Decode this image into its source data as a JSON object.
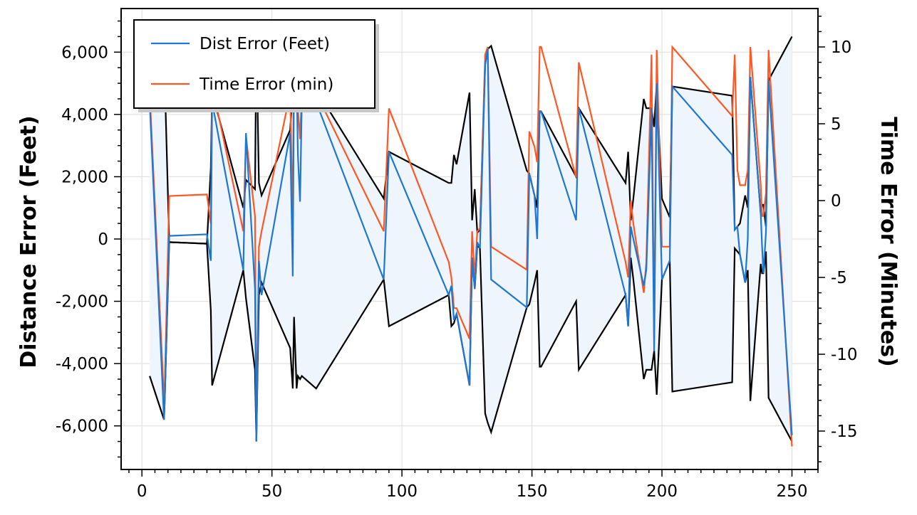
{
  "chart_data": {
    "type": "line",
    "title": "",
    "xlabel": "",
    "ylabel": "Distance Error (Feet)",
    "y2label": "Time Error (Minutes)",
    "xlim": [
      -8,
      260
    ],
    "ylim": [
      -7400,
      7400
    ],
    "y2lim": [
      -17.5,
      12.5
    ],
    "x_ticks": [
      0,
      50,
      100,
      150,
      200,
      250
    ],
    "y_ticks": [
      -6000,
      -4000,
      -2000,
      0,
      2000,
      4000,
      6000
    ],
    "y_tick_labels": [
      "-6,000",
      "-4,000",
      "-2,000",
      "0",
      "2,000",
      "4,000",
      "6,000"
    ],
    "y2_ticks": [
      -15,
      -10,
      -5,
      0,
      5,
      10
    ],
    "grid": true,
    "legend_position": "top-left",
    "colors": {
      "dist": "#1f77d0",
      "time": "#ff5722",
      "envelope": "#000000",
      "envelope_fill": "#eef5fc"
    },
    "series": [
      {
        "name": "Dist Error (Feet)",
        "axis": "left",
        "x": [
          3,
          8.5,
          8.8,
          10.5,
          25,
          26.5,
          27,
          39,
          40,
          43.5,
          44,
          45,
          46,
          57,
          58,
          58.5,
          59.5,
          60,
          60.8,
          61.5,
          67,
          93,
          95,
          118,
          119,
          120,
          121,
          126,
          127,
          128,
          129,
          130,
          132,
          133,
          134.3,
          148,
          149,
          151,
          152,
          153,
          153.5,
          167,
          168,
          186,
          187,
          188,
          189,
          193,
          194,
          196,
          197,
          198,
          200,
          203,
          204,
          227,
          228,
          229,
          230,
          232,
          233,
          234,
          238,
          238.5,
          239,
          240,
          241,
          250
        ],
        "values": [
          4400,
          -5800,
          -5100,
          100,
          150,
          -700,
          4400,
          -1000,
          3400,
          -1600,
          -6500,
          -700,
          -1800,
          3400,
          -1200,
          5800,
          5200,
          2700,
          1200,
          4400,
          4400,
          -1300,
          2800,
          -1800,
          -1500,
          -2600,
          -2400,
          -4700,
          -600,
          -1600,
          -100,
          -300,
          5600,
          6100,
          -1300,
          -2200,
          2100,
          1400,
          0,
          4100,
          4100,
          600,
          4200,
          -1800,
          -2800,
          400,
          0,
          -1500,
          -1000,
          4200,
          -3600,
          5000,
          -1300,
          -700,
          4900,
          2700,
          300,
          400,
          -500,
          -1400,
          0,
          5200,
          800,
          -200,
          -1100,
          200,
          5100,
          -6300
        ]
      },
      {
        "name": "Time Error (min)",
        "axis": "right",
        "x": [
          3,
          8.5,
          8.8,
          10.5,
          25,
          26.5,
          27,
          39,
          40,
          43.5,
          44,
          45,
          46,
          57,
          58,
          58.5,
          59.5,
          60,
          60.8,
          61.5,
          67,
          93,
          95,
          118,
          119,
          120,
          121,
          126,
          127,
          128,
          129,
          130,
          132,
          133,
          134.3,
          148,
          149,
          151,
          152,
          153,
          153.5,
          167,
          168,
          186,
          187,
          188,
          189,
          193,
          194,
          196,
          197,
          198,
          200,
          203,
          204,
          227,
          228,
          229,
          230,
          232,
          233,
          234,
          238,
          238.5,
          239,
          240,
          241,
          250
        ],
        "values": [
          7,
          -13,
          -12,
          0.3,
          0.4,
          -1.5,
          7.5,
          -2,
          4.2,
          -1,
          -15.5,
          -3,
          -2,
          7,
          -1.5,
          10,
          9,
          6,
          4,
          7,
          7,
          -2,
          6,
          -4,
          -5,
          -7,
          -7,
          -9,
          -2,
          -5,
          -2,
          -1.8,
          9.5,
          10,
          -3,
          -4.5,
          4.5,
          3.5,
          2.5,
          10,
          10,
          1.5,
          9,
          -4,
          -5,
          0,
          -1.5,
          -6,
          -4,
          9.5,
          -9,
          9.8,
          -3,
          -3,
          10,
          5.5,
          9.5,
          2,
          1,
          1,
          2,
          10,
          1,
          -1,
          -1,
          0.5,
          9.8,
          -16
        ]
      }
    ],
    "envelope": {
      "name": "",
      "axis": "left",
      "x": [
        3,
        8.5,
        8.8,
        10.5,
        25,
        26.5,
        27,
        39,
        40,
        43.5,
        44,
        45,
        46,
        57,
        58,
        58.5,
        59.5,
        60,
        60.8,
        61.5,
        67,
        93,
        95,
        118,
        119,
        120,
        121,
        126,
        127,
        128,
        129,
        130,
        132,
        133,
        134.3,
        148,
        149,
        151,
        152,
        153,
        153.5,
        167,
        168,
        186,
        187,
        188,
        189,
        193,
        194,
        196,
        197,
        198,
        200,
        203,
        204,
        227,
        228,
        229,
        230,
        232,
        233,
        234,
        238,
        238.5,
        239,
        240,
        241,
        250
      ],
      "upper": [
        4400,
        5800,
        5100,
        -100,
        -150,
        2300,
        4700,
        1000,
        1900,
        1600,
        6500,
        1800,
        1400,
        3500,
        4800,
        5800,
        5200,
        4400,
        4500,
        4400,
        4800,
        1300,
        2800,
        1800,
        1800,
        2700,
        2400,
        4700,
        600,
        1600,
        200,
        300,
        5600,
        6100,
        6200,
        2200,
        2100,
        1400,
        1000,
        4100,
        4100,
        2000,
        4200,
        1800,
        2800,
        600,
        1300,
        4500,
        4200,
        4200,
        3600,
        5000,
        1300,
        700,
        4900,
        4600,
        300,
        400,
        500,
        1400,
        1000,
        5200,
        800,
        1100,
        1100,
        400,
        5100,
        6500
      ],
      "lower": [
        -4400,
        -5800,
        -5100,
        -100,
        -150,
        -2300,
        -4700,
        -1000,
        -1900,
        -4200,
        -6500,
        -1800,
        -1400,
        -3500,
        -4800,
        -2500,
        -4800,
        -4400,
        -4500,
        -4400,
        -4800,
        -1300,
        -2800,
        -1800,
        -2800,
        -2700,
        -2400,
        -4700,
        -600,
        -1600,
        -200,
        -300,
        -5600,
        -5900,
        -6200,
        -2200,
        -2100,
        -1400,
        -1000,
        -4100,
        -4100,
        -2000,
        -4200,
        -1800,
        -2800,
        -600,
        -1300,
        -4500,
        -4200,
        -4200,
        -3600,
        -5000,
        -1300,
        -700,
        -4900,
        -4600,
        -300,
        -400,
        -500,
        -1400,
        -1000,
        -5200,
        -800,
        -1100,
        -1100,
        -400,
        -5100,
        -6500
      ]
    }
  }
}
